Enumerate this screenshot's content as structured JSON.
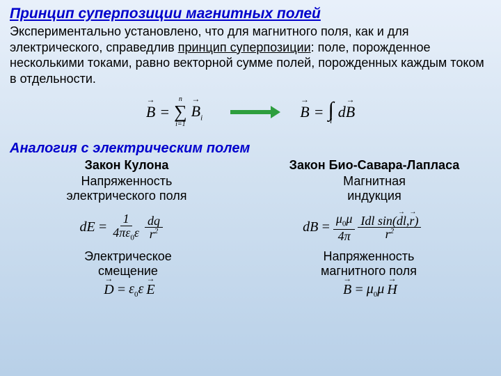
{
  "title": "Принцип суперпозиции магнитных полей",
  "body_pre": "Экспериментально установлено, что для магнитного поля, как и для электрического, справедлив ",
  "body_underlined": "принцип суперпозиции",
  "body_post": ": поле, порожденное несколькими токами, равно векторной сумме полей, порожденных каждым током в отдельности.",
  "eq_sum": {
    "B": "B",
    "eq": "=",
    "top": "n",
    "sigma": "∑",
    "bot": "i=1",
    "Bi": "B",
    "i": "i"
  },
  "eq_int": {
    "B": "B",
    "eq": "=",
    "int": "∫",
    "sub": "l",
    "d": "d",
    "Bv": "B"
  },
  "section2": "Аналогия с электрическим полем",
  "left": {
    "law": "Закон Кулона",
    "qty1": "Напряженность",
    "qty2": "электрического поля",
    "formula": {
      "dE": "dE",
      "eq": "=",
      "one": "1",
      "den1a": "4πε",
      "den1b": "0",
      "den1c": "ε",
      "dq": "dq",
      "r2a": "r",
      "r2b": "2"
    },
    "bottom1": "Электрическое",
    "bottom2": "смещение",
    "vec": {
      "D": "D",
      "eq": "=",
      "e": "ε",
      "z": "0",
      "e2": "ε",
      "E": "E"
    }
  },
  "right": {
    "law": "Закон Био-Савара-Лапласа",
    "qty1": "Магнитная",
    "qty2": "индукция",
    "formula": {
      "dB": "dB",
      "eq": "=",
      "mu": "μ",
      "z": "0",
      "mu2": "μ",
      "four": "4π",
      "num": "Idl sin(",
      "dl": "dl",
      "comma": ",",
      "r": "r",
      "close": ")",
      "r2a": "r",
      "r2b": "2"
    },
    "bottom1": "Напряженность",
    "bottom2": "магнитного поля",
    "vec": {
      "B": "B",
      "eq": "=",
      "mu": "μ",
      "z": "0",
      "mu2": "μ",
      "H": "H"
    }
  }
}
